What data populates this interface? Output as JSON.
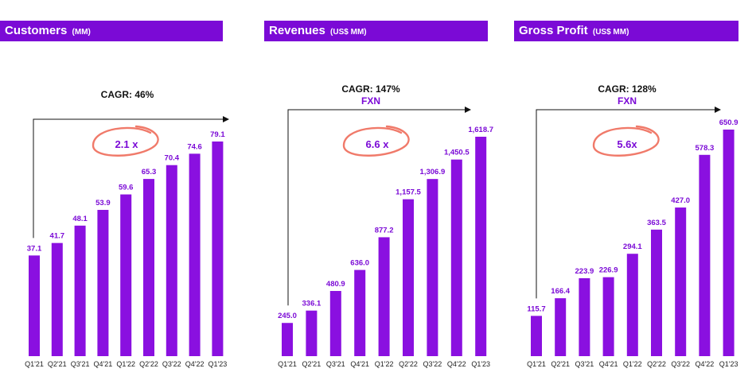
{
  "colors": {
    "bar": "#8a10e0",
    "header": "#7b0ad6",
    "accent_circle": "#f07a6a",
    "arrow": "#111111"
  },
  "chart_data": [
    {
      "type": "bar",
      "title": "Customers",
      "unit": "(MM)",
      "categories": [
        "Q1'21",
        "Q2'21",
        "Q3'21",
        "Q4'21",
        "Q1'22",
        "Q2'22",
        "Q3'22",
        "Q4'22",
        "Q1'23"
      ],
      "values": [
        37.1,
        41.7,
        48.1,
        53.9,
        59.6,
        65.3,
        70.4,
        74.6,
        79.1
      ],
      "value_labels": [
        "37.1",
        "41.7",
        "48.1",
        "53.9",
        "59.6",
        "65.3",
        "70.4",
        "74.6",
        "79.1"
      ],
      "ylim": [
        0,
        85
      ],
      "cagr": "CAGR: 46%",
      "fxn": "",
      "multiple": "2.1 x"
    },
    {
      "type": "bar",
      "title": "Revenues",
      "unit": "(US$ MM)",
      "categories": [
        "Q1'21",
        "Q2'21",
        "Q3'21",
        "Q4'21",
        "Q1'22",
        "Q2'22",
        "Q3'22",
        "Q4'22",
        "Q1'23"
      ],
      "values": [
        245.0,
        336.1,
        480.9,
        636.0,
        877.2,
        1157.5,
        1306.9,
        1450.5,
        1618.7
      ],
      "value_labels": [
        "245.0",
        "336.1",
        "480.9",
        "636.0",
        "877.2",
        "1,157.5",
        "1,306.9",
        "1,450.5",
        "1,618.7"
      ],
      "ylim": [
        0,
        1800
      ],
      "cagr": "CAGR: 147%",
      "fxn": "FXN",
      "multiple": "6.6 x"
    },
    {
      "type": "bar",
      "title": "Gross Profit",
      "unit": "(US$ MM)",
      "categories": [
        "Q1'21",
        "Q2'21",
        "Q3'21",
        "Q4'21",
        "Q1'22",
        "Q2'22",
        "Q3'22",
        "Q4'22",
        "Q1'23"
      ],
      "values": [
        115.7,
        166.4,
        223.9,
        226.9,
        294.1,
        363.5,
        427.0,
        578.3,
        650.9
      ],
      "value_labels": [
        "115.7",
        "166.4",
        "223.9",
        "226.9",
        "294.1",
        "363.5",
        "427.0",
        "578.3",
        "650.9"
      ],
      "ylim": [
        0,
        720
      ],
      "cagr": "CAGR: 128%",
      "fxn": "FXN",
      "multiple": "5.6x"
    }
  ]
}
